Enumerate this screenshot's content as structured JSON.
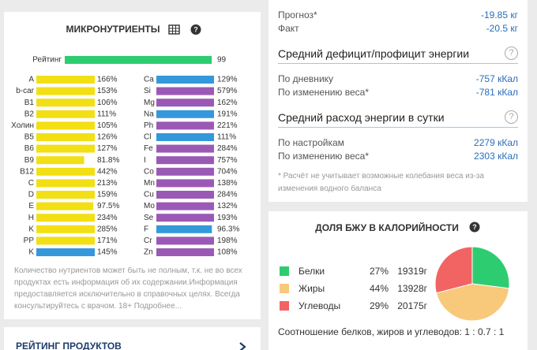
{
  "micronutrients": {
    "title": "МИКРОНУТРИЕНТЫ",
    "xlim": [
      0,
      100
    ],
    "rating": {
      "label": "Рейтинг",
      "value": 99,
      "color": "#2ecc71"
    },
    "left": [
      {
        "name": "A",
        "value": 166,
        "value_label": "166%",
        "color": "#f2df14"
      },
      {
        "name": "b-car",
        "value": 153,
        "value_label": "153%",
        "color": "#f2df14"
      },
      {
        "name": "B1",
        "value": 106,
        "value_label": "106%",
        "color": "#f2df14"
      },
      {
        "name": "B2",
        "value": 111,
        "value_label": "111%",
        "color": "#f2df14"
      },
      {
        "name": "Холин",
        "value": 105,
        "value_label": "105%",
        "color": "#f2df14"
      },
      {
        "name": "B5",
        "value": 126,
        "value_label": "126%",
        "color": "#f2df14"
      },
      {
        "name": "B6",
        "value": 127,
        "value_label": "127%",
        "color": "#f2df14"
      },
      {
        "name": "B9",
        "value": 81.8,
        "value_label": "81.8%",
        "color": "#f2df14"
      },
      {
        "name": "B12",
        "value": 442,
        "value_label": "442%",
        "color": "#f2df14"
      },
      {
        "name": "C",
        "value": 213,
        "value_label": "213%",
        "color": "#f2df14"
      },
      {
        "name": "D",
        "value": 159,
        "value_label": "159%",
        "color": "#f2df14"
      },
      {
        "name": "E",
        "value": 97.5,
        "value_label": "97.5%",
        "color": "#f2df14"
      },
      {
        "name": "H",
        "value": 234,
        "value_label": "234%",
        "color": "#f2df14"
      },
      {
        "name": "K",
        "value": 285,
        "value_label": "285%",
        "color": "#f2df14"
      },
      {
        "name": "PP",
        "value": 171,
        "value_label": "171%",
        "color": "#f2df14"
      },
      {
        "name": "K",
        "value": 145,
        "value_label": "145%",
        "color": "#3498db"
      }
    ],
    "right": [
      {
        "name": "Ca",
        "value": 129,
        "value_label": "129%",
        "color": "#3498db"
      },
      {
        "name": "Si",
        "value": 579,
        "value_label": "579%",
        "color": "#9b59b6"
      },
      {
        "name": "Mg",
        "value": 162,
        "value_label": "162%",
        "color": "#9b59b6"
      },
      {
        "name": "Na",
        "value": 191,
        "value_label": "191%",
        "color": "#3498db"
      },
      {
        "name": "Ph",
        "value": 221,
        "value_label": "221%",
        "color": "#9b59b6"
      },
      {
        "name": "Cl",
        "value": 111,
        "value_label": "111%",
        "color": "#3498db"
      },
      {
        "name": "Fe",
        "value": 284,
        "value_label": "284%",
        "color": "#9b59b6"
      },
      {
        "name": "I",
        "value": 757,
        "value_label": "757%",
        "color": "#9b59b6"
      },
      {
        "name": "Co",
        "value": 704,
        "value_label": "704%",
        "color": "#9b59b6"
      },
      {
        "name": "Mn",
        "value": 138,
        "value_label": "138%",
        "color": "#9b59b6"
      },
      {
        "name": "Cu",
        "value": 284,
        "value_label": "284%",
        "color": "#9b59b6"
      },
      {
        "name": "Mo",
        "value": 132,
        "value_label": "132%",
        "color": "#9b59b6"
      },
      {
        "name": "Se",
        "value": 193,
        "value_label": "193%",
        "color": "#9b59b6"
      },
      {
        "name": "F",
        "value": 96.3,
        "value_label": "96.3%",
        "color": "#3498db"
      },
      {
        "name": "Cr",
        "value": 198,
        "value_label": "198%",
        "color": "#9b59b6"
      },
      {
        "name": "Zn",
        "value": 108,
        "value_label": "108%",
        "color": "#9b59b6"
      }
    ],
    "note": "Количество нутриентов может быть не полным, т.к. не во всех продуктах есть информация об их содержании.Информация предоставляется исключительно в справочных целях. Всегда консультируйтесь с врачом. 18+ Подробнее..."
  },
  "products": {
    "title": "РЕЙТИНГ ПРОДУКТОВ"
  },
  "weight": {
    "rows": [
      {
        "label": "Прогноз*",
        "value": "-19.85 кг"
      },
      {
        "label": "Факт",
        "value": "-20.5 кг"
      }
    ]
  },
  "deficit": {
    "title": "Средний дефицит/профицит энергии",
    "rows": [
      {
        "label": "По дневнику",
        "value": "-757 кКал"
      },
      {
        "label": "По изменению веса*",
        "value": "-781 кКал"
      }
    ]
  },
  "expenditure": {
    "title": "Средний расход энергии в сутки",
    "rows": [
      {
        "label": "По настройкам",
        "value": "2279 кКал"
      },
      {
        "label": "По изменению веса*",
        "value": "2303 кКал"
      }
    ]
  },
  "footnote": "* Расчёт не учитывает возможные колебания веса из-за изменения водного баланса",
  "macros": {
    "title": "ДОЛЯ БЖУ В КАЛОРИЙНОСТИ",
    "items": [
      {
        "name": "Белки",
        "color": "#2ecc71",
        "share": 27,
        "share_label": "27%",
        "grams": 19319,
        "grams_label": "19319г"
      },
      {
        "name": "Жиры",
        "color": "#f8c97a",
        "share": 44,
        "share_label": "44%",
        "grams": 13928,
        "grams_label": "13928г"
      },
      {
        "name": "Углеводы",
        "color": "#f26464",
        "share": 29,
        "share_label": "29%",
        "grams": 20175,
        "grams_label": "20175г"
      }
    ],
    "ratio": "Соотношение белков, жиров и углеводов: 1 : 0.7 : 1"
  }
}
